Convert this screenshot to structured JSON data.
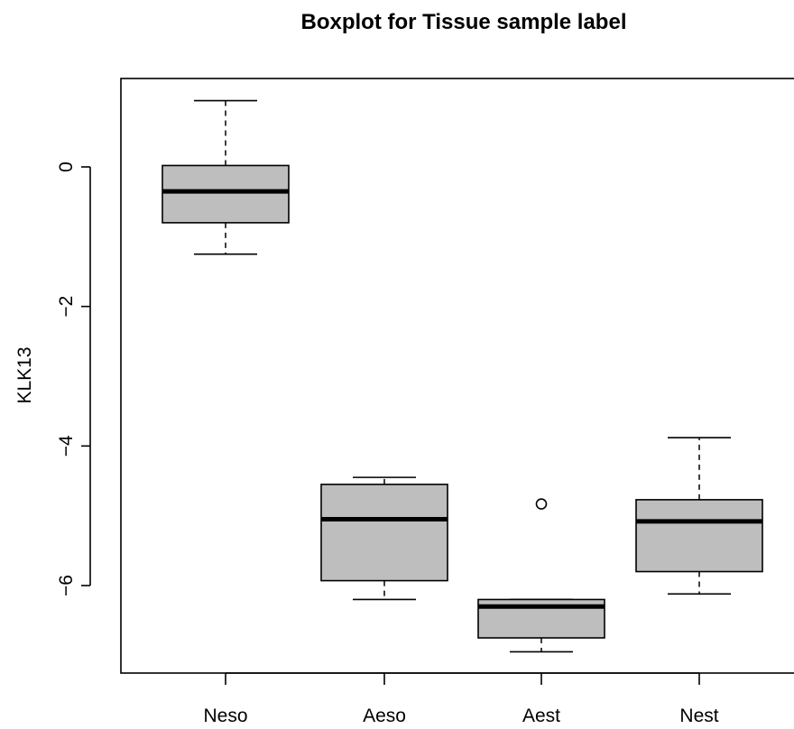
{
  "chart_data": {
    "type": "boxplot",
    "title": "Boxplot for Tissue sample label",
    "xlabel": "",
    "ylabel": "KLK13",
    "ylim": [
      -7.5,
      1.3
    ],
    "yticks": [
      0,
      -2,
      -4,
      -6
    ],
    "ytick_labels": [
      "0",
      "−2",
      "−4",
      "−6"
    ],
    "categories": [
      "Neso",
      "Aeso",
      "Aest",
      "Nest"
    ],
    "boxes": [
      {
        "category": "Neso",
        "whisker_low": -1.25,
        "q1": -0.8,
        "median": -0.35,
        "q3": 0.02,
        "whisker_high": 0.95,
        "outliers": []
      },
      {
        "category": "Aeso",
        "whisker_low": -6.2,
        "q1": -5.93,
        "median": -5.05,
        "q3": -4.55,
        "whisker_high": -4.45,
        "outliers": []
      },
      {
        "category": "Aest",
        "whisker_low": -6.95,
        "q1": -6.75,
        "median": -6.3,
        "q3": -6.2,
        "whisker_high": -6.2,
        "outliers": [
          -4.83
        ]
      },
      {
        "category": "Nest",
        "whisker_low": -6.12,
        "q1": -5.8,
        "median": -5.08,
        "q3": -4.77,
        "whisker_high": -3.88,
        "outliers": []
      }
    ],
    "box_fill": "#bebebe",
    "line_color": "#000000",
    "grid": false,
    "legend": "none"
  }
}
